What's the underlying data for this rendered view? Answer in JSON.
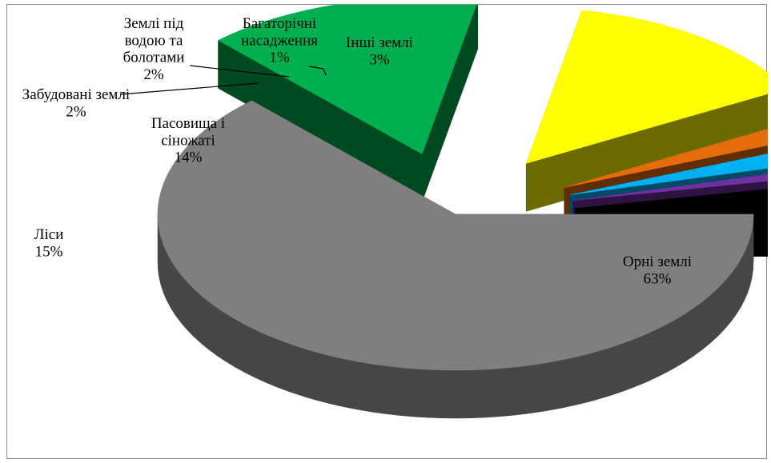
{
  "chart_data": {
    "type": "pie",
    "style": "3d-exploded",
    "legend": "none",
    "slices": [
      {
        "label": "Орні землі",
        "lines": [
          "Орні землі"
        ],
        "value": 63,
        "pct_label": "63%",
        "color": "#7f7f7f"
      },
      {
        "label": "Ліси",
        "lines": [
          "Ліси"
        ],
        "value": 15,
        "pct_label": "15%",
        "color": "#00b050"
      },
      {
        "label": "Пасовища і сіножаті",
        "lines": [
          "Пасовища і",
          "сіножаті"
        ],
        "value": 14,
        "pct_label": "14%",
        "color": "#ffff00"
      },
      {
        "label": "Забудовані землі",
        "lines": [
          "Забудовані землі"
        ],
        "value": 2,
        "pct_label": "2%",
        "color": "#e46c0a"
      },
      {
        "label": "Землі під водою та болотами",
        "lines": [
          "Землі під",
          "водою та",
          "болотами"
        ],
        "value": 2,
        "pct_label": "2%",
        "color": "#00b0f0"
      },
      {
        "label": "Багаторічні насадження",
        "lines": [
          "Багаторічні",
          "насадження"
        ],
        "value": 1,
        "pct_label": "1%",
        "color": "#7030a0"
      },
      {
        "label": "Інші землі",
        "lines": [
          "Інші землі"
        ],
        "value": 3,
        "pct_label": "3%",
        "color": "#000000"
      }
    ]
  }
}
